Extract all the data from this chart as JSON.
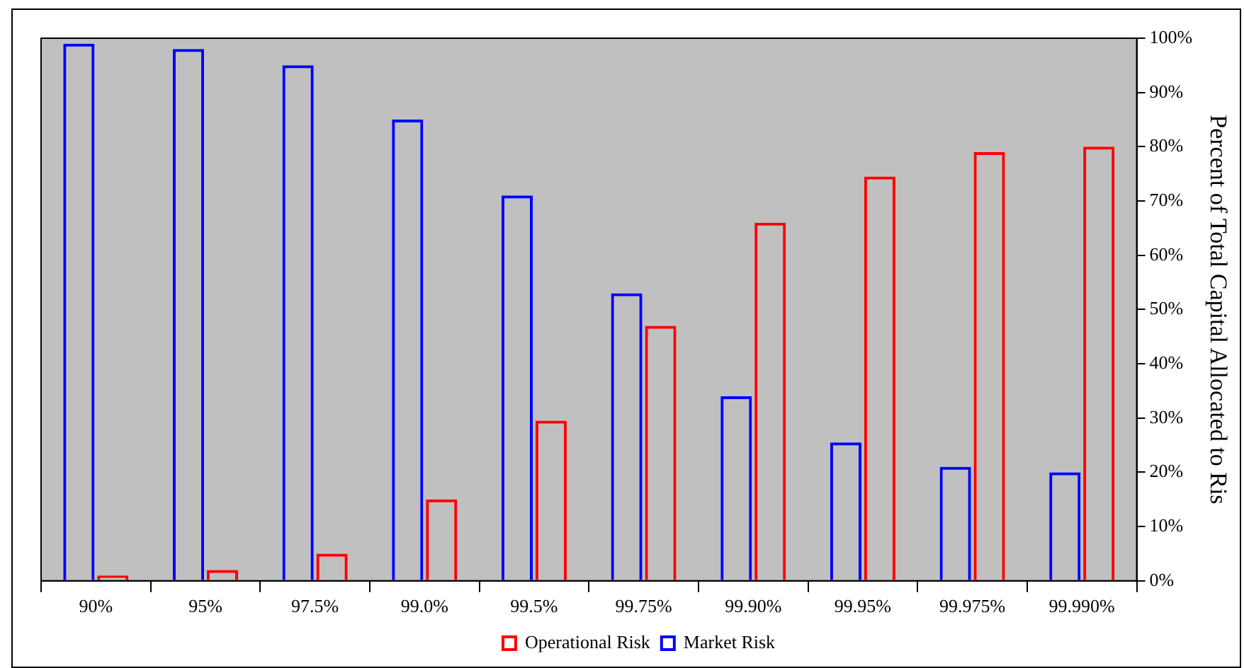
{
  "chart_data": {
    "type": "bar",
    "y2label": "Percent of Total Capital Allocated to Ris",
    "categories": [
      "90%",
      "95%",
      "97.5%",
      "99.0%",
      "99.5%",
      "99.75%",
      "99.90%",
      "99.95%",
      "99.975%",
      "99.990%"
    ],
    "series": [
      {
        "name": "Market Risk",
        "color": "#0000ff",
        "axis": "y2",
        "values": [
          99,
          98,
          95,
          85,
          71,
          53,
          34,
          25.5,
          21,
          20
        ]
      },
      {
        "name": "Operational Risk",
        "color": "#ff0000",
        "axis": "y2",
        "values": [
          1,
          2,
          5,
          15,
          29.5,
          47,
          66,
          74.5,
          79,
          80
        ]
      }
    ],
    "y2lim": [
      0,
      100
    ],
    "y2ticks": [
      {
        "value": 0,
        "label": "0%"
      },
      {
        "value": 10,
        "label": "10%"
      },
      {
        "value": 20,
        "label": "20%"
      },
      {
        "value": 30,
        "label": "30%"
      },
      {
        "value": 40,
        "label": "40%"
      },
      {
        "value": 50,
        "label": "50%"
      },
      {
        "value": 60,
        "label": "60%"
      },
      {
        "value": 70,
        "label": "70%"
      },
      {
        "value": 80,
        "label": "80%"
      },
      {
        "value": 90,
        "label": "90%"
      },
      {
        "value": 100,
        "label": "100%"
      }
    ],
    "grid": false,
    "legend": "bottom"
  }
}
